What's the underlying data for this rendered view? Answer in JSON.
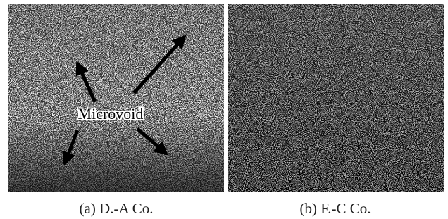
{
  "figure": {
    "annotation": "Microvoid",
    "panels": [
      {
        "caption": "(a) D.-A Co."
      },
      {
        "caption": "(b) F.-C Co."
      }
    ]
  }
}
